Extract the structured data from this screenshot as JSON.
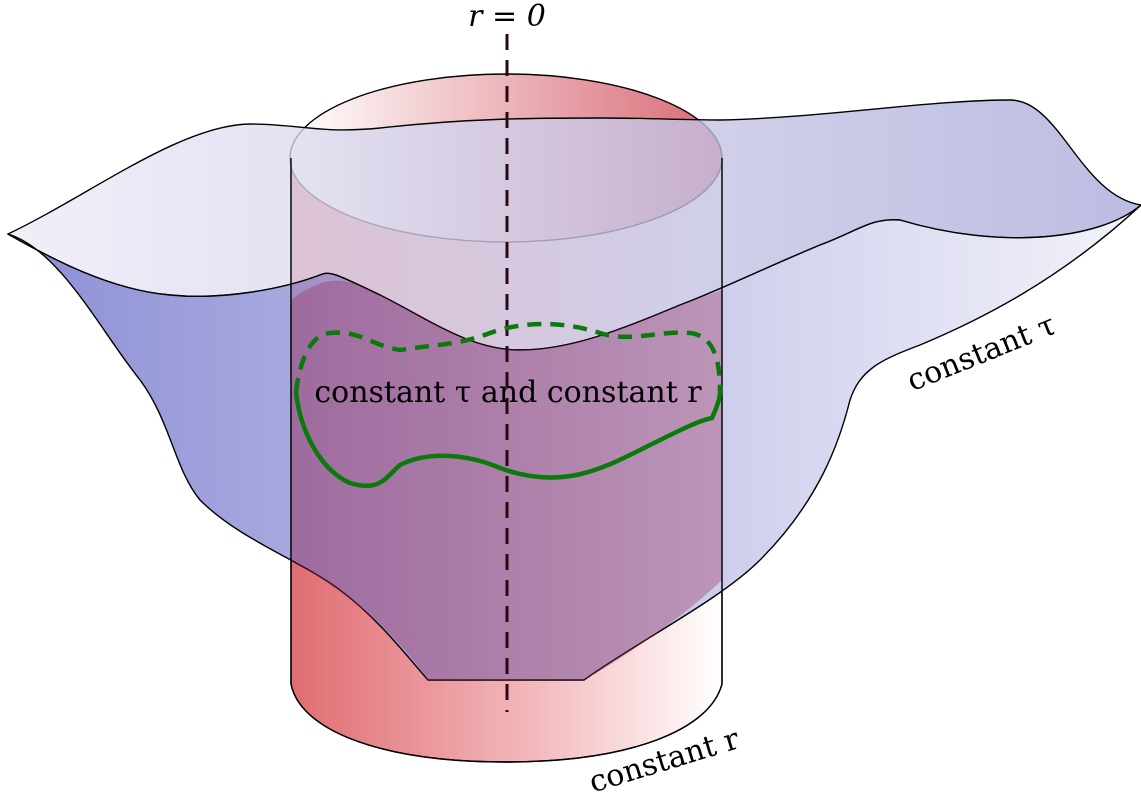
{
  "labels": {
    "axis_label": "r = 0",
    "intersection_label": "constant τ and constant r",
    "surface_label": "constant τ",
    "cylinder_label": "constant r"
  },
  "colors": {
    "cylinder_red": "#d9535a",
    "surface_blue": "#6f72c8",
    "curve_green": "#0a7a0a",
    "axis_dash": "#2a0a12"
  }
}
